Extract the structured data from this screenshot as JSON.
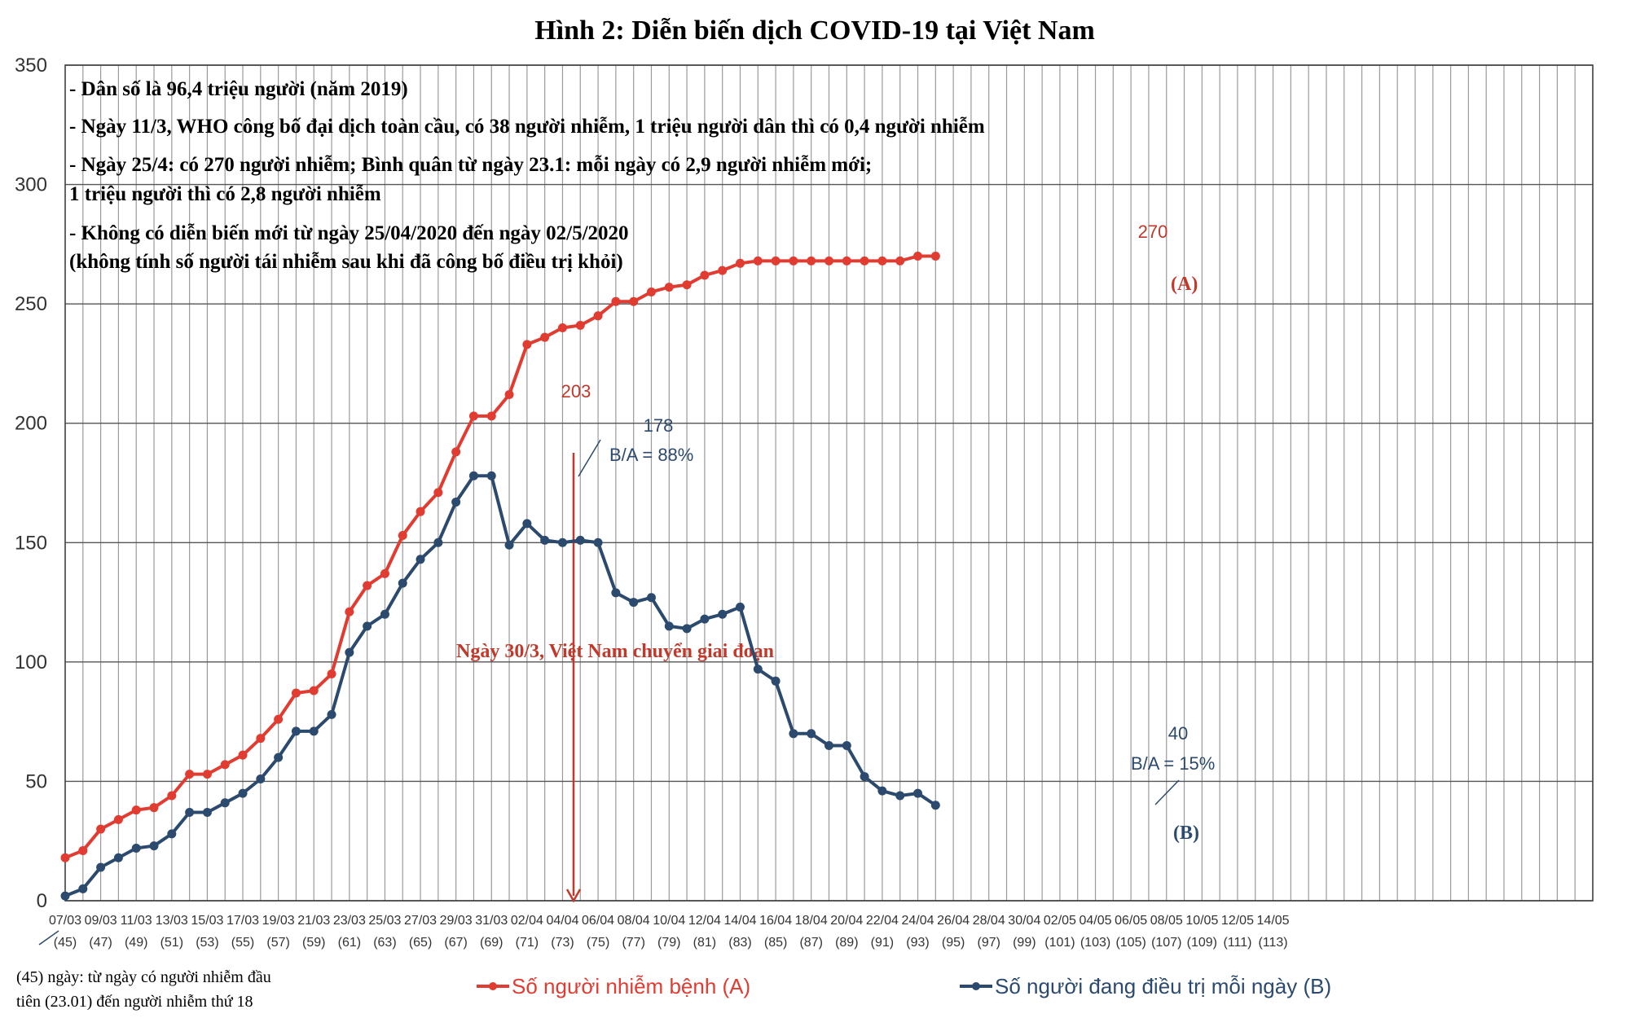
{
  "chart_data": {
    "type": "line",
    "title": "Hình 2: Diễn biến dịch COVID-19 tại Việt Nam",
    "ylim": [
      0,
      350
    ],
    "yticks": [
      0,
      50,
      100,
      150,
      200,
      250,
      300,
      350
    ],
    "grid": true,
    "x_tick_dates": [
      "07/03",
      "09/03",
      "11/03",
      "13/03",
      "15/03",
      "17/03",
      "19/03",
      "21/03",
      "23/03",
      "25/03",
      "27/03",
      "29/03",
      "31/03",
      "02/04",
      "04/04",
      "06/04",
      "08/04",
      "10/04",
      "12/04",
      "14/04",
      "16/04",
      "18/04",
      "20/04",
      "22/04",
      "24/04",
      "26/04",
      "28/04",
      "30/04",
      "02/05",
      "04/05",
      "06/05",
      "08/05",
      "10/05",
      "12/05",
      "14/05"
    ],
    "x_tick_days": [
      "(45)",
      "(47)",
      "(49)",
      "(51)",
      "(53)",
      "(55)",
      "(57)",
      "(59)",
      "(61)",
      "(63)",
      "(65)",
      "(67)",
      "(69)",
      "(71)",
      "(73)",
      "(75)",
      "(77)",
      "(79)",
      "(81)",
      "(83)",
      "(85)",
      "(87)",
      "(89)",
      "(91)",
      "(93)",
      "(95)",
      "(97)",
      "(99)",
      "(101)",
      "(103)",
      "(105)",
      "(107)",
      "(109)",
      "(111)",
      "(113)"
    ],
    "series": [
      {
        "name": "Số người nhiễm bệnh (A)",
        "color": "#e03c31",
        "values": [
          18,
          21,
          30,
          34,
          38,
          39,
          44,
          53,
          53,
          57,
          61,
          68,
          76,
          87,
          88,
          95,
          121,
          132,
          137,
          153,
          163,
          171,
          188,
          203,
          203,
          212,
          233,
          236,
          240,
          241,
          245,
          251,
          251,
          255,
          257,
          258,
          262,
          264,
          267,
          268,
          268,
          268,
          268,
          268,
          268,
          268,
          268,
          268,
          270,
          270
        ]
      },
      {
        "name": "Số người đang điều trị mỗi ngày (B)",
        "color": "#2c4a6e",
        "values": [
          2,
          5,
          14,
          18,
          22,
          23,
          28,
          37,
          37,
          41,
          45,
          51,
          60,
          71,
          71,
          78,
          104,
          115,
          120,
          133,
          143,
          150,
          167,
          178,
          178,
          149,
          158,
          151,
          150,
          151,
          150,
          129,
          125,
          127,
          115,
          114,
          118,
          120,
          123,
          97,
          92,
          70,
          70,
          65,
          65,
          52,
          46,
          44,
          45,
          40
        ]
      }
    ],
    "annotations": {
      "a_peak_value": "203",
      "a_end_value": "270",
      "b_peak_value": "178",
      "b_peak_ratio": "B/A = 88%",
      "b_end_value": "40",
      "b_end_ratio": "B/A = 15%",
      "marker_a": "(A)",
      "marker_b": "(B)",
      "phase_change": "Ngày 30/3, Việt Nam chuyển giai đoạn"
    },
    "notes": [
      "- Dân số là 96,4 triệu người (năm 2019)",
      "- Ngày 11/3, WHO công bố đại dịch toàn cầu, có 38 người nhiễm, 1 triệu người dân thì có 0,4 người nhiễm",
      "- Ngày 25/4: có 270 người nhiễm; Bình quân từ ngày 23.1: mỗi ngày có 2,9 người nhiễm mới;",
      "1 triệu người thì có 2,8 người nhiễm",
      "- Không có diễn biến mới từ ngày 25/04/2020 đến ngày 02/5/2020",
      "(không tính số người tái nhiễm sau khi đã công bố điều trị khỏi)"
    ],
    "footnote": [
      "(45) ngày: từ ngày có người nhiễm đầu",
      "tiên (23.01) đến người nhiễm thứ 18"
    ],
    "legend": [
      {
        "label": "Số người nhiễm bệnh (A)",
        "color": "#e03c31"
      },
      {
        "label": "Số người đang điều trị mỗi ngày (B)",
        "color": "#2c4a6e"
      }
    ]
  }
}
